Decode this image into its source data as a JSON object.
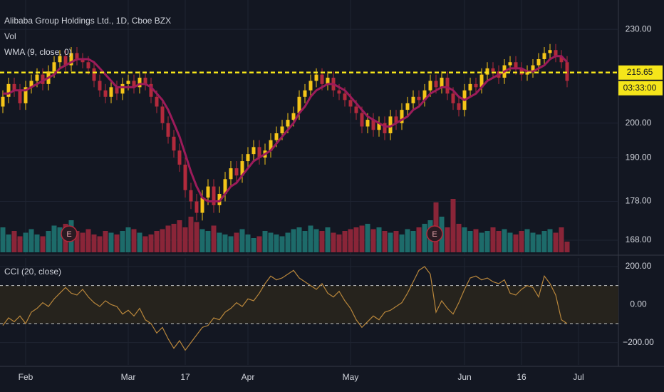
{
  "chart_data": [
    {
      "type": "candlestick",
      "title": "Alibaba Group Holdings Ltd., 1D, Cboe BZX",
      "log": true,
      "grid": true,
      "up_color": "#f5c518",
      "down_color": "#b22a3c",
      "categories": [
        null,
        null,
        null,
        null,
        "Feb",
        null,
        null,
        null,
        null,
        null,
        null,
        null,
        null,
        null,
        null,
        null,
        null,
        null,
        null,
        null,
        null,
        null,
        "Mar",
        null,
        null,
        null,
        null,
        null,
        null,
        null,
        null,
        null,
        "17",
        null,
        null,
        null,
        null,
        null,
        null,
        null,
        null,
        null,
        null,
        "Apr",
        null,
        null,
        null,
        null,
        null,
        null,
        null,
        null,
        null,
        null,
        null,
        null,
        null,
        null,
        null,
        null,
        null,
        "May",
        null,
        null,
        null,
        null,
        null,
        null,
        null,
        null,
        null,
        null,
        null,
        null,
        null,
        null,
        null,
        null,
        null,
        null,
        null,
        "Jun",
        null,
        null,
        null,
        null,
        null,
        null,
        null,
        null,
        null,
        "16",
        null,
        null,
        null,
        null,
        null,
        null,
        null,
        null,
        null,
        "Jul"
      ],
      "open": [
        205,
        208,
        212,
        210,
        206,
        211,
        213,
        215,
        212,
        216,
        219,
        221,
        218,
        222,
        220,
        219,
        217,
        213,
        210,
        208,
        211,
        209,
        212,
        213,
        211,
        214,
        212,
        208,
        205,
        200,
        196,
        192,
        188,
        181,
        178,
        175,
        179,
        182,
        177,
        180,
        184,
        187,
        185,
        189,
        191,
        193,
        190,
        192,
        195,
        197,
        199,
        201,
        203,
        208,
        210,
        213,
        215,
        212,
        214,
        210,
        209,
        207,
        205,
        203,
        199,
        201,
        198,
        200,
        197,
        202,
        200,
        204,
        206,
        208,
        207,
        210,
        213,
        211,
        214,
        209,
        206,
        204,
        210,
        212,
        211,
        215,
        217,
        216,
        214,
        218,
        219,
        217,
        215,
        216,
        218,
        220,
        222,
        223,
        221,
        219,
        null,
        null
      ],
      "high": [
        210,
        214,
        214,
        212,
        213,
        215,
        217,
        217,
        218,
        221,
        223,
        223,
        224,
        224,
        222,
        221,
        219,
        215,
        212,
        213,
        213,
        214,
        215,
        215,
        216,
        216,
        214,
        210,
        207,
        202,
        198,
        194,
        190,
        183,
        180,
        181,
        184,
        184,
        182,
        186,
        189,
        189,
        191,
        193,
        195,
        195,
        194,
        197,
        199,
        201,
        203,
        205,
        210,
        212,
        215,
        217,
        217,
        216,
        216,
        212,
        211,
        209,
        207,
        205,
        203,
        203,
        202,
        202,
        204,
        204,
        206,
        208,
        210,
        210,
        212,
        215,
        215,
        216,
        216,
        211,
        208,
        212,
        214,
        214,
        217,
        219,
        219,
        218,
        220,
        221,
        221,
        219,
        218,
        220,
        222,
        224,
        225,
        225,
        223,
        221,
        null,
        null
      ],
      "low": [
        203,
        206,
        208,
        204,
        204,
        209,
        211,
        210,
        210,
        214,
        217,
        216,
        216,
        218,
        217,
        215,
        211,
        208,
        206,
        206,
        207,
        207,
        210,
        209,
        209,
        210,
        206,
        203,
        198,
        194,
        190,
        186,
        179,
        176,
        173,
        173,
        177,
        175,
        175,
        178,
        182,
        183,
        183,
        187,
        189,
        188,
        188,
        190,
        193,
        195,
        197,
        199,
        201,
        206,
        208,
        211,
        210,
        210,
        208,
        207,
        205,
        203,
        201,
        197,
        197,
        196,
        196,
        195,
        195,
        198,
        198,
        202,
        204,
        205,
        205,
        208,
        209,
        209,
        207,
        204,
        202,
        202,
        208,
        209,
        209,
        213,
        214,
        212,
        212,
        216,
        215,
        213,
        213,
        214,
        216,
        218,
        220,
        219,
        217,
        211,
        null,
        null
      ],
      "close": [
        208,
        212,
        210,
        206,
        211,
        213,
        215,
        212,
        216,
        219,
        221,
        218,
        222,
        220,
        219,
        217,
        213,
        210,
        208,
        211,
        209,
        212,
        213,
        211,
        214,
        212,
        208,
        205,
        200,
        196,
        192,
        188,
        181,
        178,
        175,
        179,
        182,
        177,
        180,
        184,
        187,
        185,
        189,
        191,
        193,
        190,
        192,
        195,
        197,
        199,
        201,
        203,
        208,
        210,
        213,
        215,
        212,
        214,
        210,
        209,
        207,
        205,
        203,
        199,
        201,
        198,
        200,
        197,
        202,
        200,
        204,
        206,
        208,
        207,
        210,
        213,
        211,
        214,
        209,
        206,
        204,
        210,
        212,
        211,
        215,
        217,
        216,
        214,
        218,
        219,
        217,
        215,
        216,
        218,
        220,
        222,
        223,
        221,
        219,
        213,
        null,
        null
      ],
      "wma": {
        "name": "WMA (9, close, 0)",
        "color": "#9c1b5a",
        "values": [
          209,
          209,
          210,
          210,
          210,
          211,
          212,
          213,
          214,
          215,
          217,
          218,
          219,
          220,
          220,
          220,
          219,
          217,
          215,
          213,
          211,
          211,
          211,
          211,
          212,
          212,
          211,
          209,
          207,
          204,
          200,
          196,
          191,
          186,
          182,
          179,
          178,
          178,
          178,
          180,
          182,
          183,
          185,
          187,
          189,
          190,
          191,
          192,
          194,
          196,
          198,
          200,
          203,
          205,
          208,
          210,
          211,
          212,
          212,
          211,
          210,
          208,
          206,
          204,
          202,
          201,
          200,
          199,
          199,
          200,
          201,
          202,
          204,
          205,
          207,
          209,
          210,
          211,
          211,
          210,
          208,
          207,
          208,
          209,
          211,
          213,
          214,
          215,
          216,
          217,
          217,
          217,
          216,
          216,
          217,
          218,
          220,
          221,
          221,
          219,
          null,
          null
        ]
      },
      "ylim": [
        165,
        240
      ],
      "yticks": [
        {
          "value": 168,
          "label": "168.00"
        },
        {
          "value": 178,
          "label": "178.00"
        },
        {
          "value": 190,
          "label": "190.00"
        },
        {
          "value": 200,
          "label": "200.00"
        },
        {
          "value": 230,
          "label": "230.00"
        }
      ],
      "last_price": 215.65,
      "countdown": "03:33:00",
      "earnings_label": "E"
    },
    {
      "type": "bar",
      "name": "Vol",
      "up_color": "#1d6b6a",
      "down_color": "#8a2538",
      "ylim": [
        0,
        40
      ],
      "values": [
        14,
        10,
        12,
        9,
        11,
        13,
        10,
        9,
        12,
        15,
        14,
        16,
        18,
        12,
        11,
        13,
        10,
        9,
        12,
        11,
        10,
        12,
        14,
        13,
        11,
        9,
        10,
        12,
        13,
        15,
        16,
        18,
        14,
        20,
        17,
        13,
        12,
        15,
        11,
        10,
        9,
        11,
        13,
        10,
        8,
        9,
        12,
        11,
        10,
        9,
        11,
        13,
        14,
        12,
        15,
        13,
        12,
        14,
        11,
        10,
        12,
        13,
        14,
        15,
        16,
        13,
        14,
        12,
        11,
        12,
        10,
        13,
        12,
        14,
        16,
        18,
        28,
        20,
        14,
        30,
        16,
        14,
        12,
        13,
        11,
        12,
        14,
        12,
        13,
        11,
        10,
        12,
        13,
        11,
        10,
        12,
        13,
        11,
        14,
        6,
        null,
        null
      ]
    },
    {
      "type": "line",
      "title": "CCI (20, close)",
      "color": "#b8863b",
      "values": [
        -110,
        -70,
        -90,
        -60,
        -100,
        -40,
        -20,
        10,
        -10,
        30,
        60,
        90,
        60,
        50,
        80,
        40,
        10,
        -10,
        20,
        0,
        -10,
        -50,
        -30,
        -60,
        -20,
        -80,
        -100,
        -150,
        -120,
        -180,
        -230,
        -190,
        -240,
        -200,
        -160,
        -120,
        -110,
        -70,
        -80,
        -40,
        -20,
        10,
        -10,
        30,
        20,
        60,
        110,
        150,
        130,
        140,
        160,
        180,
        140,
        120,
        100,
        80,
        110,
        60,
        40,
        70,
        20,
        -20,
        -80,
        -120,
        -90,
        -60,
        -80,
        -40,
        -30,
        -10,
        10,
        60,
        120,
        180,
        200,
        160,
        -40,
        20,
        -20,
        -50,
        10,
        80,
        140,
        150,
        130,
        140,
        120,
        110,
        130,
        60,
        50,
        80,
        100,
        90,
        40,
        150,
        110,
        50,
        -80,
        -100,
        null,
        null
      ],
      "bands": [
        100,
        -100
      ],
      "ylim": [
        -310,
        245
      ],
      "yticks": [
        {
          "value": 200,
          "label": "200.00"
        },
        {
          "value": 0,
          "label": "0.00"
        },
        {
          "value": -200,
          "label": "−200.00"
        }
      ]
    }
  ]
}
